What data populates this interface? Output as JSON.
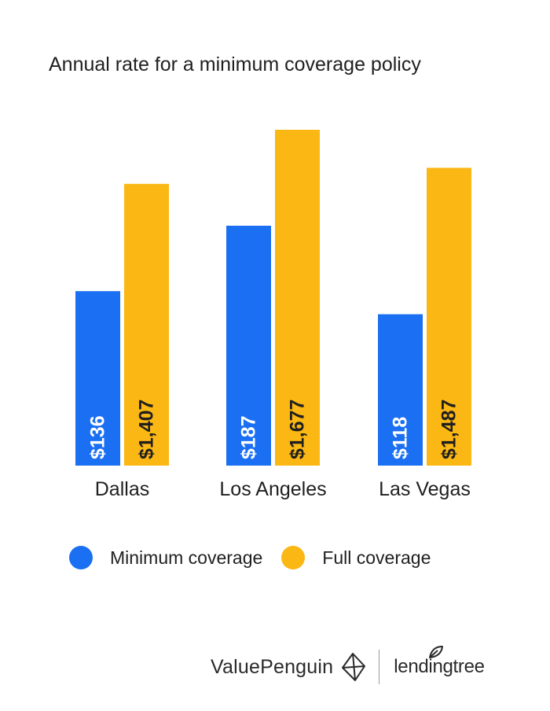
{
  "chart_data": {
    "type": "bar",
    "title": "Annual rate for a minimum coverage policy",
    "categories": [
      "Dallas",
      "Los Angeles",
      "Las Vegas"
    ],
    "series": [
      {
        "name": "Minimum coverage",
        "color": "#1a6ff2",
        "values": [
          136,
          187,
          118
        ],
        "labels": [
          "$136",
          "$187",
          "$118"
        ]
      },
      {
        "name": "Full coverage",
        "color": "#fbb713",
        "values": [
          1407,
          1677,
          1487
        ],
        "labels": [
          "$1,407",
          "$1,677",
          "$1,487"
        ]
      }
    ],
    "legend_position": "bottom",
    "grid": false,
    "xlabel": "",
    "ylabel": ""
  },
  "legend": {
    "items": [
      {
        "label": "Minimum coverage",
        "color": "#1a6ff2"
      },
      {
        "label": "Full coverage",
        "color": "#fbb713"
      }
    ]
  },
  "footer": {
    "brand_left": "ValuePenguin",
    "brand_right": "lendingtree"
  }
}
